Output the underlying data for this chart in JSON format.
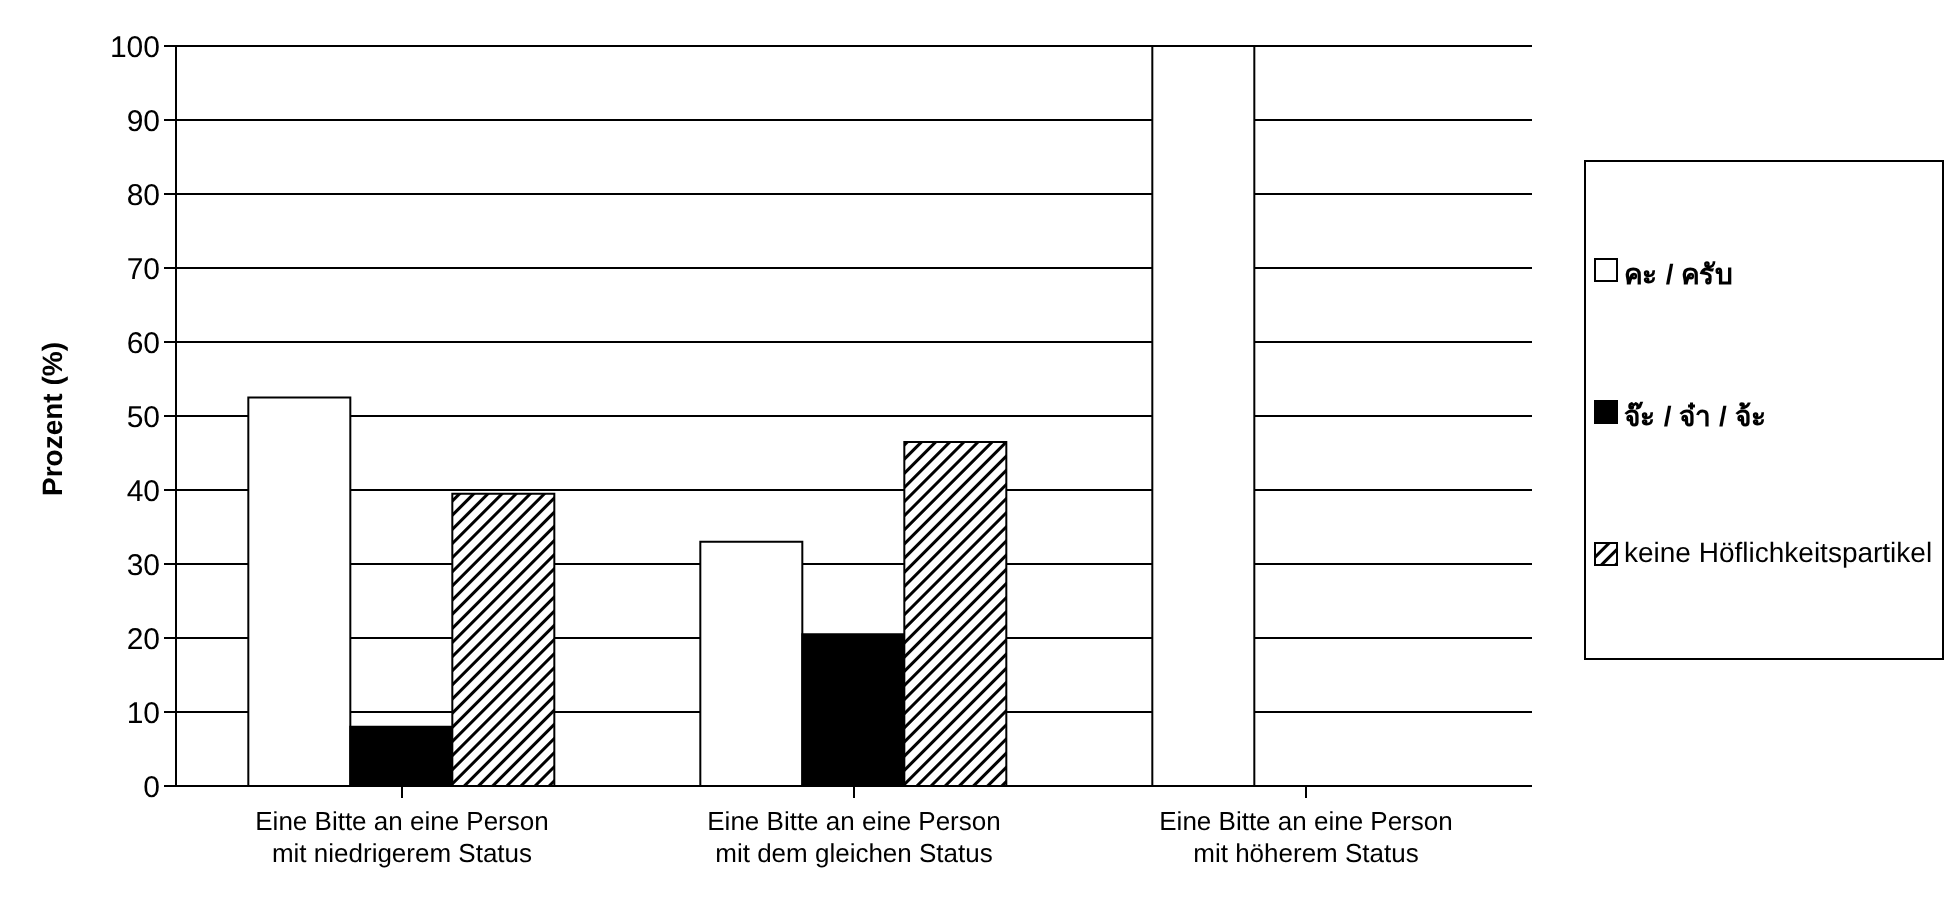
{
  "chart_data": {
    "type": "bar",
    "ylabel": "Prozent (%)",
    "categories": [
      "Eine Bitte an eine Person\nmit niedrigerem Status",
      "Eine Bitte an eine Person\nmit dem gleichen Status",
      "Eine Bitte an eine Person\nmit höherem Status"
    ],
    "series": [
      {
        "name": "คะ / ครับ",
        "color": "#ffffff",
        "values": [
          52.5,
          33,
          100
        ]
      },
      {
        "name": "จ๊ะ / จ๋า / จ้ะ",
        "color": "#000000",
        "values": [
          8,
          20.5,
          0
        ]
      },
      {
        "name": "keine Höflichkeitspartikel",
        "color": "#000000",
        "values": [
          39.5,
          46.5,
          0
        ]
      }
    ],
    "ylim": [
      0,
      100
    ],
    "yticks": [
      0,
      10,
      20,
      30,
      40,
      50,
      60,
      70,
      80,
      90,
      100
    ],
    "grid": "y",
    "legend": "right"
  }
}
